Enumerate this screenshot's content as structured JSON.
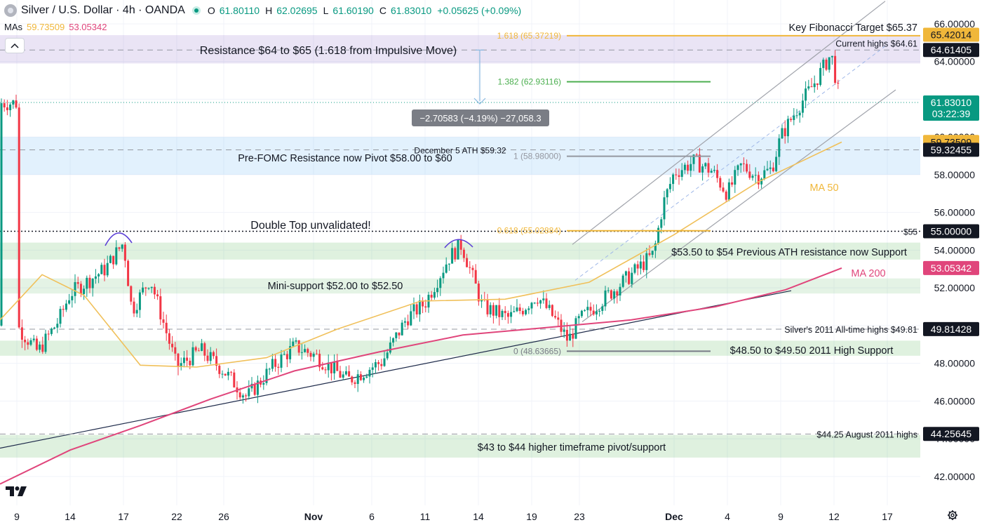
{
  "header": {
    "title": "Silver / U.S. Dollar · 4h · OANDA",
    "open_label": "O",
    "open": "61.80110",
    "high_label": "H",
    "high": "62.02695",
    "low_label": "L",
    "low": "61.60190",
    "close_label": "C",
    "close": "61.83010",
    "change": "+0.05625 (+0.09%)",
    "mas_label": "MAs",
    "ma50_value": "59.73509",
    "ma200_value": "53.05342"
  },
  "chart_data": {
    "type": "candlestick",
    "symbol": "Silver / U.S. Dollar",
    "timeframe": "4h",
    "ylim": [
      41.4,
      66.8
    ],
    "y_ticks": [
      "66.00000",
      "64.00000",
      "62.00000",
      "60.00000",
      "58.00000",
      "56.00000",
      "54.00000",
      "52.00000",
      "50.00000",
      "48.00000",
      "46.00000",
      "44.00000",
      "42.00000"
    ],
    "x_ticks": [
      "9",
      "14",
      "17",
      "22",
      "26",
      "Nov",
      "6",
      "11",
      "14",
      "19",
      "23",
      "Dec",
      "4",
      "9",
      "12",
      "17"
    ],
    "anchors": [
      {
        "date": "Oct 9",
        "close": 50.0
      },
      {
        "date": "Oct 11",
        "close": 48.6
      },
      {
        "date": "Oct 13",
        "close": 50.3
      },
      {
        "date": "Oct 14",
        "close": 51.7
      },
      {
        "date": "Oct 16",
        "close": 53.0
      },
      {
        "date": "Oct 17",
        "close": 54.4
      },
      {
        "date": "Oct 18",
        "close": 50.8
      },
      {
        "date": "Oct 20",
        "close": 52.5
      },
      {
        "date": "Oct 22",
        "close": 47.8
      },
      {
        "date": "Oct 24",
        "close": 48.7
      },
      {
        "date": "Oct 26",
        "close": 47.6
      },
      {
        "date": "Oct 28",
        "close": 46.2
      },
      {
        "date": "Oct 30",
        "close": 47.8
      },
      {
        "date": "Nov 1",
        "close": 48.9
      },
      {
        "date": "Nov 3",
        "close": 48.4
      },
      {
        "date": "Nov 5",
        "close": 47.1
      },
      {
        "date": "Nov 8",
        "close": 48.1
      },
      {
        "date": "Nov 10",
        "close": 50.4
      },
      {
        "date": "Nov 11",
        "close": 51.2
      },
      {
        "date": "Nov 12",
        "close": 53.6
      },
      {
        "date": "Nov 13",
        "close": 54.3
      },
      {
        "date": "Nov 14",
        "close": 51.0
      },
      {
        "date": "Nov 16",
        "close": 50.4
      },
      {
        "date": "Nov 17",
        "close": 50.9
      },
      {
        "date": "Nov 18",
        "close": 51.6
      },
      {
        "date": "Nov 20",
        "close": 50.4
      },
      {
        "date": "Nov 21",
        "close": 49.2
      },
      {
        "date": "Nov 23",
        "close": 50.3
      },
      {
        "date": "Nov 24",
        "close": 51.4
      },
      {
        "date": "Nov 26",
        "close": 52.7
      },
      {
        "date": "Nov 28",
        "close": 53.8
      },
      {
        "date": "Nov 29",
        "close": 56.4
      },
      {
        "date": "Dec 1",
        "close": 58.1
      },
      {
        "date": "Dec 2",
        "close": 58.7
      },
      {
        "date": "Dec 3",
        "close": 58.2
      },
      {
        "date": "Dec 4",
        "close": 57.0
      },
      {
        "date": "Dec 5",
        "close": 58.5
      },
      {
        "date": "Dec 7",
        "close": 57.9
      },
      {
        "date": "Dec 8",
        "close": 58.3
      },
      {
        "date": "Dec 9",
        "close": 60.0
      },
      {
        "date": "Dec 10",
        "close": 61.6
      },
      {
        "date": "Dec 11",
        "close": 62.8
      },
      {
        "date": "Dec 12",
        "close": 64.4
      },
      {
        "date": "Dec 12",
        "close": 61.8
      }
    ],
    "ma50": [
      [
        50.3,
        50.3
      ],
      [
        50.95,
        52.7
      ],
      [
        51.9,
        51.6
      ],
      [
        53.0,
        47.9
      ],
      [
        54.2,
        47.8
      ],
      [
        55.5,
        48.3
      ],
      [
        56.7,
        49.8
      ],
      [
        58.0,
        51.3
      ],
      [
        59.2,
        51.4
      ],
      [
        60.4,
        52.3
      ],
      [
        61.4,
        54.8
      ],
      [
        62.3,
        57.6
      ],
      [
        63.4,
        59.73
      ]
    ],
    "ma200": [
      [
        41.6,
        41.6
      ],
      [
        42.4,
        43.4
      ],
      [
        43.3,
        44.7
      ],
      [
        44.4,
        46.1
      ],
      [
        45.6,
        47.6
      ],
      [
        47.0,
        48.6
      ],
      [
        48.4,
        49.5
      ],
      [
        49.6,
        49.9
      ],
      [
        50.7,
        50.3
      ],
      [
        51.6,
        51.0
      ],
      [
        52.5,
        51.9
      ],
      [
        53.5,
        53.05
      ]
    ],
    "price_labels": [
      {
        "value": "65.42014",
        "color": "#f0b73a",
        "text_color": "#131722"
      },
      {
        "value": "64.61405",
        "color": "#131722",
        "text_color": "#ffffff"
      },
      {
        "value": "61.83010",
        "color": "#089981",
        "text_color": "#ffffff",
        "sub": "03:22:39"
      },
      {
        "value": "59.73509",
        "color": "#f0b73a",
        "text_color": "#131722"
      },
      {
        "value": "59.32455",
        "color": "#131722",
        "text_color": "#ffffff"
      },
      {
        "value": "55.00000",
        "color": "#131722",
        "text_color": "#ffffff"
      },
      {
        "value": "53.05342",
        "color": "#e0457b",
        "text_color": "#ffffff"
      },
      {
        "value": "49.81428",
        "color": "#131722",
        "text_color": "#ffffff"
      },
      {
        "value": "44.25645",
        "color": "#131722",
        "text_color": "#ffffff"
      }
    ],
    "zones": [
      {
        "from": 63.9,
        "to": 65.4,
        "color": "rgba(126,87,194,0.16)",
        "label": "Resistance $64 to $65 (1.618 from Impulsive Move)"
      },
      {
        "from": 58.0,
        "to": 60.0,
        "color": "rgba(33,150,243,0.13)",
        "label": "Pre-FOMC Resistance now Pivot $58.00 to $60"
      },
      {
        "from": 53.5,
        "to": 54.4,
        "color": "rgba(76,175,80,0.18)",
        "label": "$53.50 to $54 Previous ATH resistance now Support"
      },
      {
        "from": 51.7,
        "to": 52.5,
        "color": "rgba(76,175,80,0.15)",
        "label": "Mini-support $52.00 to $52.50"
      },
      {
        "from": 48.4,
        "to": 49.2,
        "color": "rgba(76,175,80,0.18)",
        "label": "$48.50 to $49.50 2011 High Support"
      },
      {
        "from": 43.0,
        "to": 44.2,
        "color": "rgba(76,175,80,0.18)",
        "label": "$43 to $44 higher timeframe pivot/support"
      }
    ],
    "hlines": [
      {
        "value": 64.61,
        "style": "dashed",
        "label": "Current highs $64.61"
      },
      {
        "value": 59.32,
        "style": "dashed",
        "label": "December 5 ATH $59.32"
      },
      {
        "value": 55.0,
        "style": "dotted",
        "label": "Double Top unvalidated!",
        "right_label": "$55"
      },
      {
        "value": 49.81,
        "style": "dashed",
        "label": "Silver's 2011 All-time highs $49.81"
      },
      {
        "value": 44.25,
        "style": "dashed",
        "label": "$44.25 August 2011 highs"
      }
    ],
    "fibonacci": [
      {
        "label": "1.618 (65.37219)",
        "value": 65.37,
        "color": "#f0b73a"
      },
      {
        "label": "1.382 (62.93116)",
        "value": 62.93,
        "color": "#4caf50"
      },
      {
        "label": "1 (58.98000)",
        "value": 58.98,
        "color": "#9598a1"
      },
      {
        "label": "0.618 (55.02884)",
        "value": 55.03,
        "color": "#f0b73a"
      },
      {
        "label": "0 (48.63665)",
        "value": 48.64,
        "color": "#787b86"
      }
    ],
    "annotations": {
      "fib_target": "Key Fibonacci Target $65.37",
      "measure": "−2.70583 (−4.19%) −27,058.3",
      "ma50_label": "MA 50",
      "ma200_label": "MA 200"
    }
  }
}
